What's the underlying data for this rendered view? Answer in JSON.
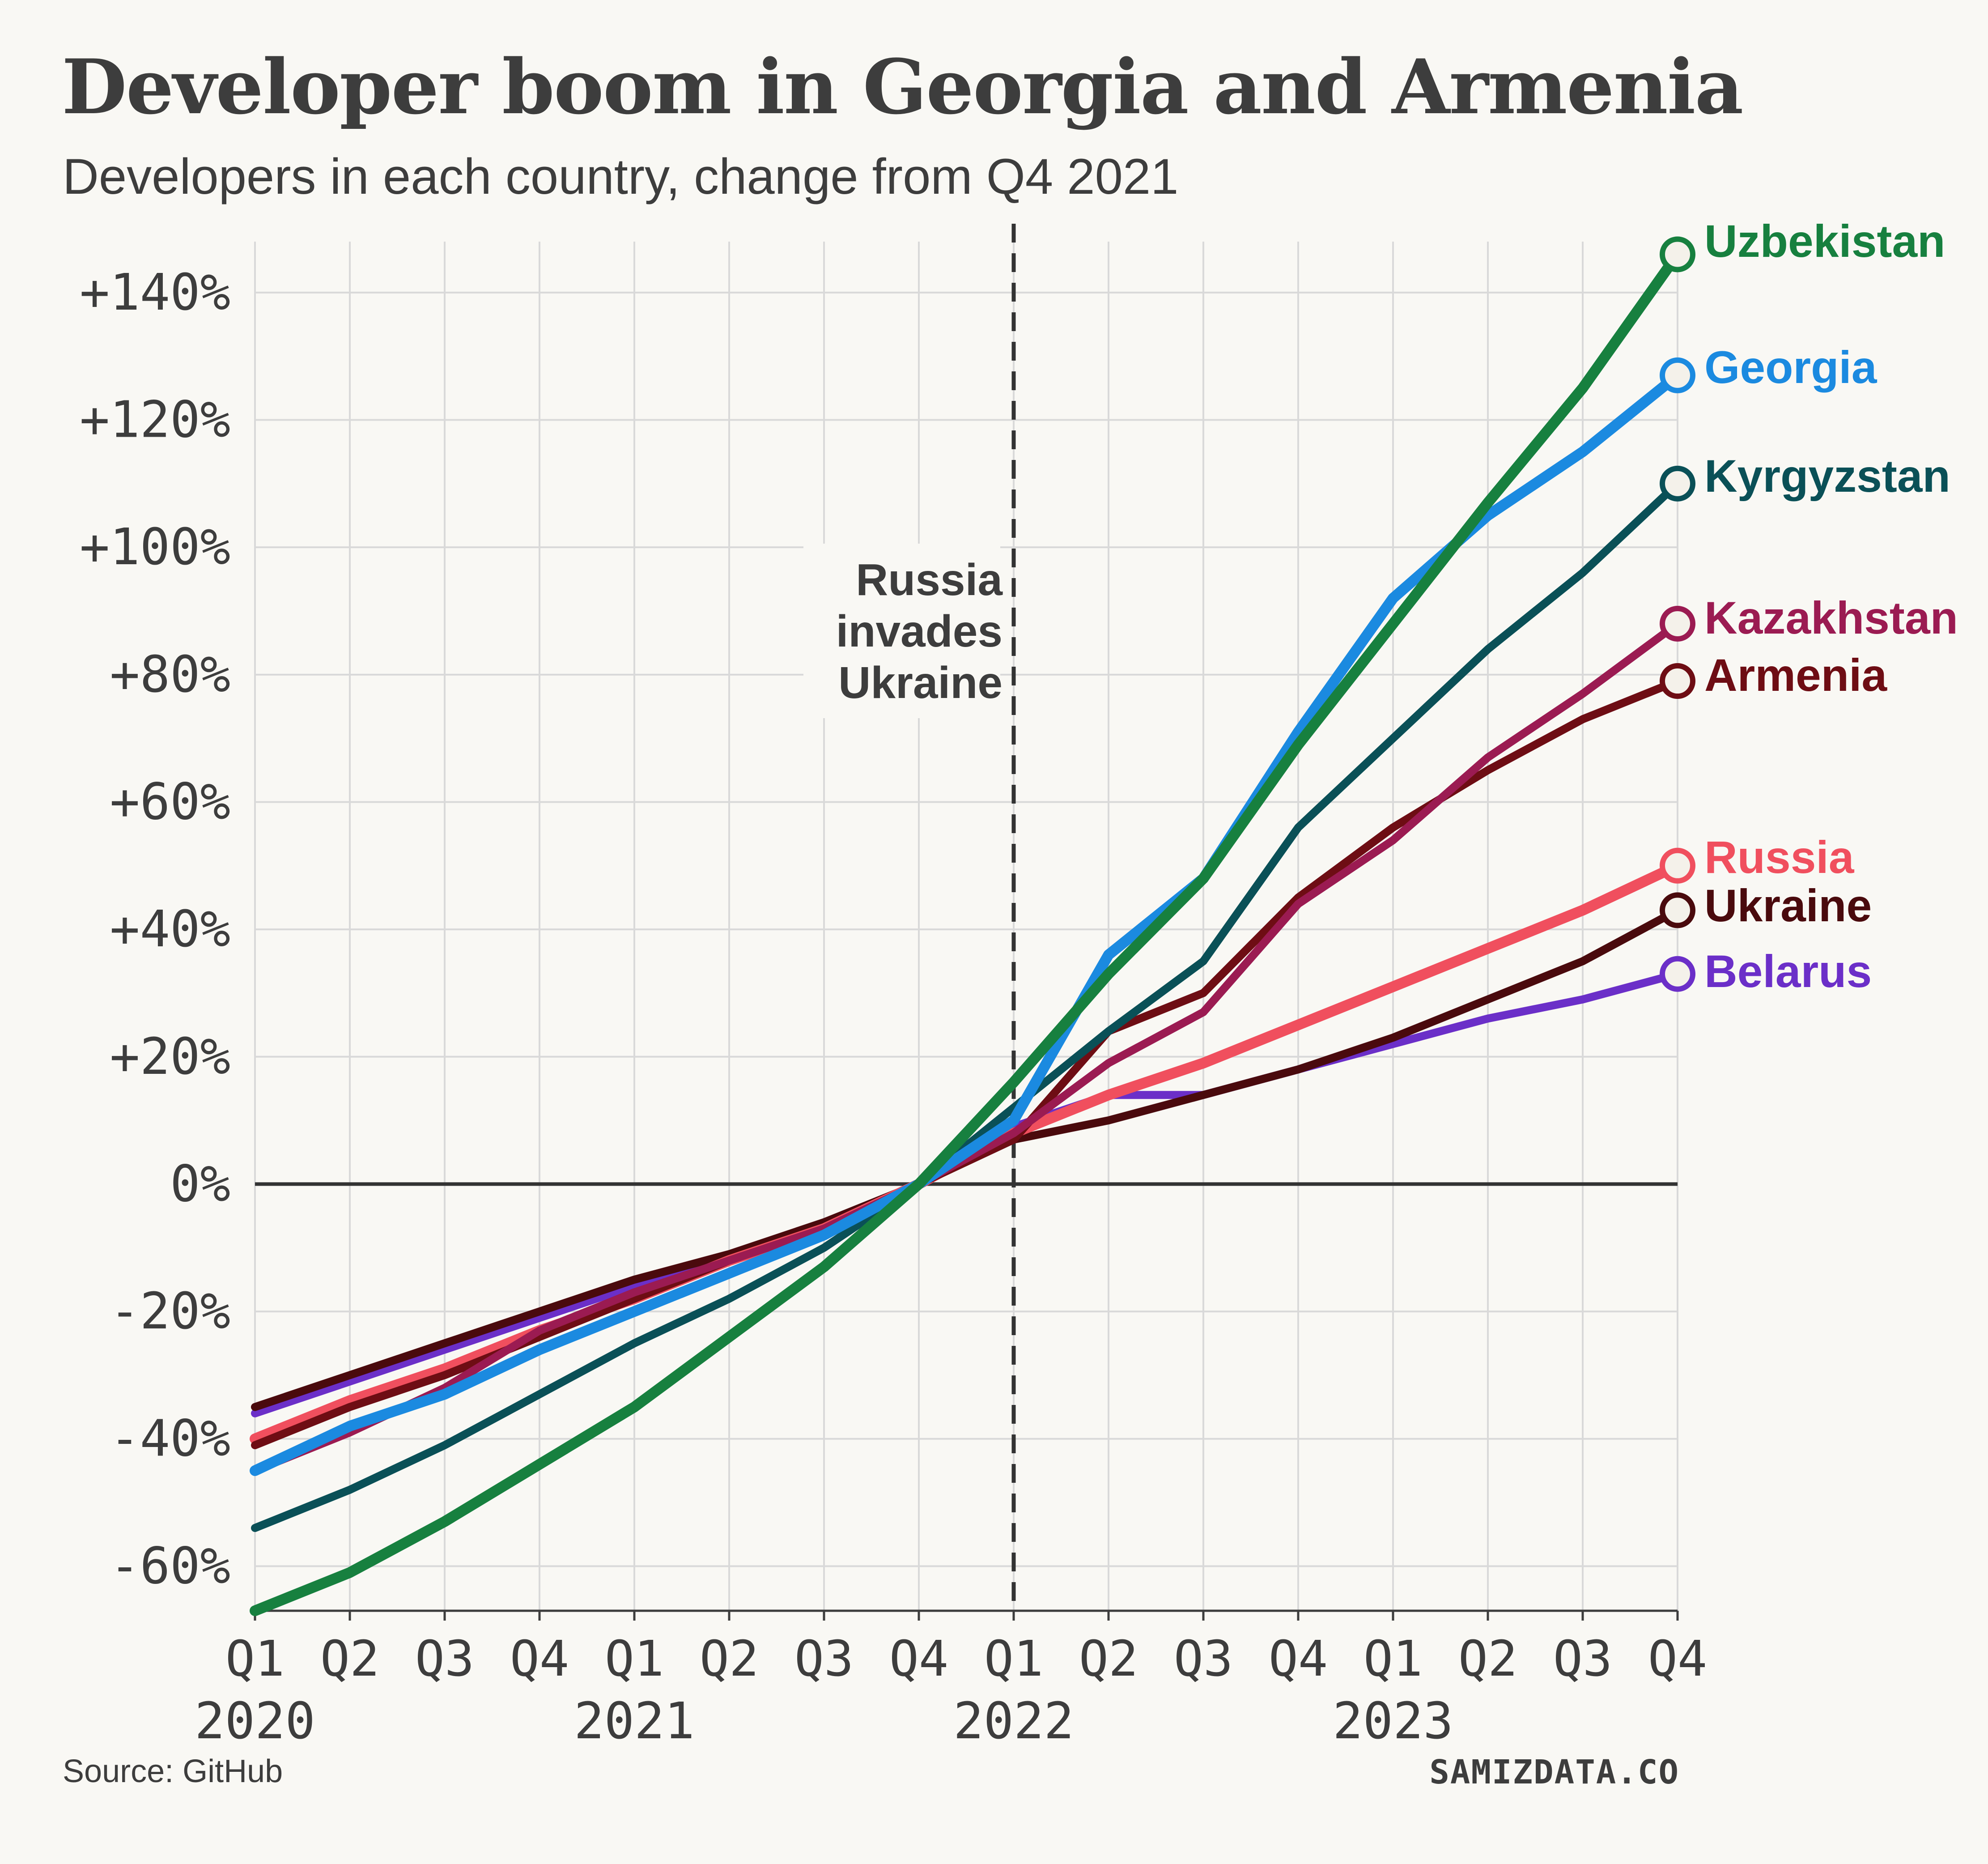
{
  "title": "Developer boom in Georgia and Armenia",
  "subtitle": "Developers in each country, change from Q4 2021",
  "source": "Source: GitHub",
  "brand": "SAMIZDATA.CO",
  "annotation": {
    "lines": [
      "Russia",
      "invades",
      "Ukraine"
    ],
    "x_index": 8
  },
  "chart_data": {
    "type": "line",
    "title": "Developer boom in Georgia and Armenia",
    "subtitle": "Developers in each country, change from Q4 2021",
    "x": [
      "Q1 2020",
      "Q2 2020",
      "Q3 2020",
      "Q4 2020",
      "Q1 2021",
      "Q2 2021",
      "Q3 2021",
      "Q4 2021",
      "Q1 2022",
      "Q2 2022",
      "Q3 2022",
      "Q4 2022",
      "Q1 2023",
      "Q2 2023",
      "Q3 2023",
      "Q4 2023"
    ],
    "x_tick_labels": [
      "Q1",
      "Q2",
      "Q3",
      "Q4",
      "Q1",
      "Q2",
      "Q3",
      "Q4",
      "Q1",
      "Q2",
      "Q3",
      "Q4",
      "Q1",
      "Q2",
      "Q3",
      "Q4"
    ],
    "x_year_labels": [
      {
        "label": "2020",
        "index": 0
      },
      {
        "label": "2021",
        "index": 4
      },
      {
        "label": "2022",
        "index": 8
      },
      {
        "label": "2023",
        "index": 12
      }
    ],
    "ylim": [
      -67,
      148
    ],
    "y_ticks": [
      -60,
      -40,
      -20,
      0,
      20,
      40,
      60,
      80,
      100,
      120,
      140
    ],
    "y_tick_labels": [
      "-60%",
      "-40%",
      "-20%",
      "0%",
      "+20%",
      "+40%",
      "+60%",
      "+80%",
      "+100%",
      "+120%",
      "+140%"
    ],
    "grid": true,
    "legend": "labels at line ends (right)",
    "series": [
      {
        "name": "Belarus",
        "color": "#6b2fc8",
        "values": [
          -36,
          -31,
          -26,
          -21,
          -16,
          -12,
          -7,
          0,
          9,
          14,
          14,
          18,
          22,
          26,
          29,
          33
        ]
      },
      {
        "name": "Ukraine",
        "color": "#4a0a0d",
        "values": [
          -35,
          -30,
          -25,
          -20,
          -15,
          -11,
          -6,
          0,
          7,
          10,
          14,
          18,
          23,
          29,
          35,
          43
        ]
      },
      {
        "name": "Russia",
        "color": "#f04f5e",
        "values": [
          -40,
          -34,
          -29,
          -23,
          -18,
          -12,
          -7,
          0,
          8,
          14,
          19,
          25,
          31,
          37,
          43,
          50
        ]
      },
      {
        "name": "Armenia",
        "color": "#6e0d14",
        "values": [
          -41,
          -35,
          -30,
          -24,
          -18,
          -12,
          -7,
          0,
          7,
          24,
          30,
          45,
          56,
          65,
          73,
          79
        ]
      },
      {
        "name": "Kazakhstan",
        "color": "#9b1b52",
        "values": [
          -45,
          -39,
          -32,
          -23,
          -17,
          -12,
          -7,
          0,
          8,
          19,
          27,
          44,
          54,
          67,
          77,
          88
        ]
      },
      {
        "name": "Kyrgyzstan",
        "color": "#0a5057",
        "values": [
          -54,
          -48,
          -41,
          -33,
          -25,
          -18,
          -10,
          0,
          12,
          24,
          35,
          56,
          70,
          84,
          96,
          110
        ]
      },
      {
        "name": "Georgia",
        "color": "#1b8ae0",
        "values": [
          -45,
          -38,
          -33,
          -26,
          -20,
          -14,
          -8,
          0,
          10,
          36,
          48,
          71,
          92,
          105,
          115,
          127
        ]
      },
      {
        "name": "Uzbekistan",
        "color": "#17803f",
        "values": [
          -67,
          -61,
          -53,
          -44,
          -35,
          -24,
          -13,
          0,
          16,
          33,
          48,
          69,
          88,
          107,
          125,
          146
        ]
      }
    ]
  }
}
